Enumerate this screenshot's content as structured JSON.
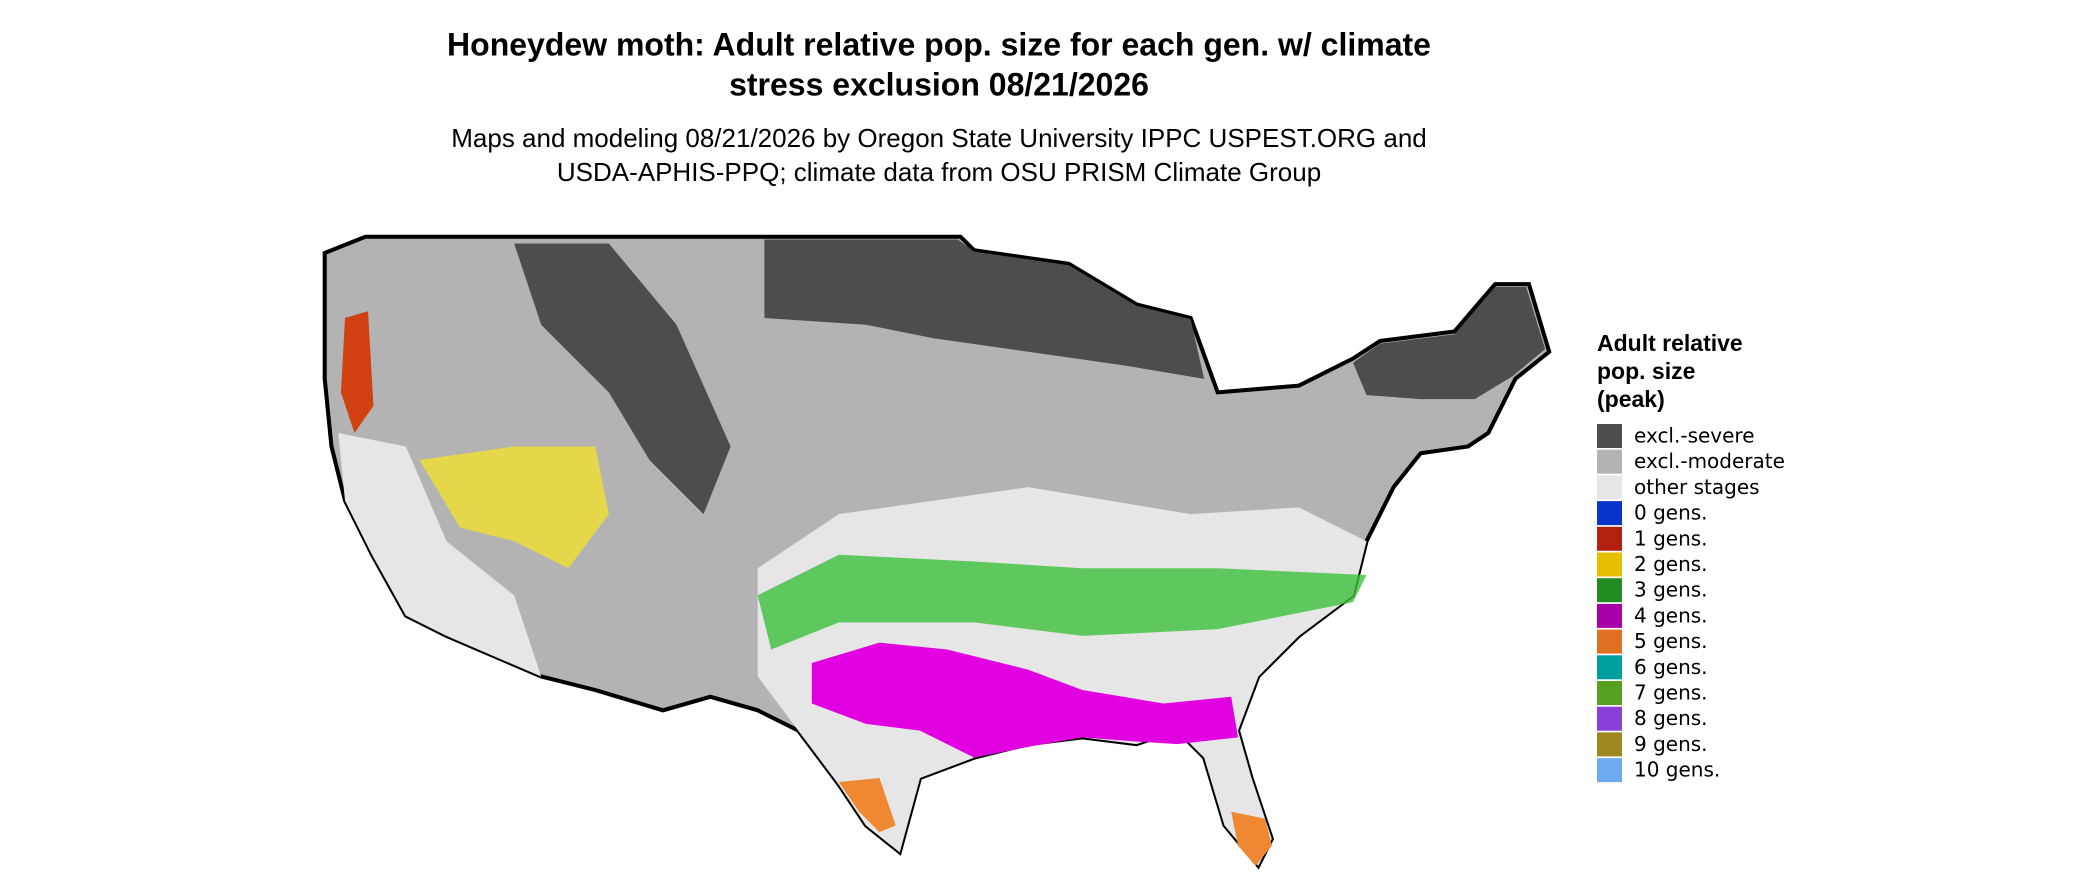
{
  "header": {
    "title_lines": [
      "Honeydew moth: Adult relative pop. size for each gen. w/ climate",
      "stress exclusion 08/21/2026"
    ],
    "subtitle_lines": [
      "Maps and modeling 08/21/2026 by Oregon State University IPPC USPEST.ORG and",
      "USDA-APHIS-PPQ; climate data from OSU PRISM Climate Group"
    ]
  },
  "legend": {
    "title_lines": [
      "Adult relative",
      "pop. size",
      "(peak)"
    ],
    "items": [
      {
        "label": "excl.-severe",
        "color": "#4d4d4d"
      },
      {
        "label": "excl.-moderate",
        "color": "#b3b3b3"
      },
      {
        "label": "other stages",
        "color": "#e6e6e6"
      },
      {
        "label": "0 gens.",
        "color": "#0a33cc"
      },
      {
        "label": "1 gens.",
        "color": "#b22010"
      },
      {
        "label": "2 gens.",
        "color": "#e6c000"
      },
      {
        "label": "3 gens.",
        "color": "#228b22"
      },
      {
        "label": "4 gens.",
        "color": "#a800a8"
      },
      {
        "label": "5 gens.",
        "color": "#e07020"
      },
      {
        "label": "6 gens.",
        "color": "#00a0a0"
      },
      {
        "label": "7 gens.",
        "color": "#55a020"
      },
      {
        "label": "8 gens.",
        "color": "#8a40d8"
      },
      {
        "label": "9 gens.",
        "color": "#a08820"
      },
      {
        "label": "10 gens.",
        "color": "#70aaee"
      }
    ]
  }
}
